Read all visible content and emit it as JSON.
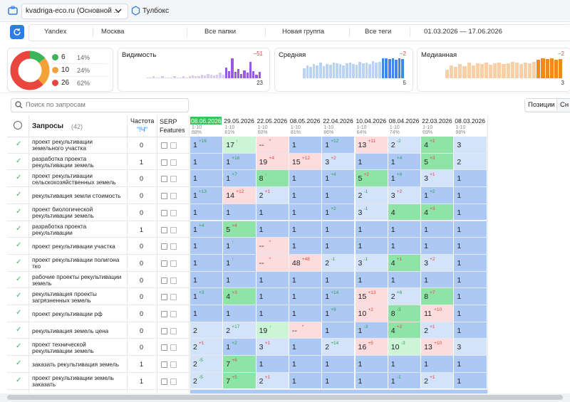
{
  "topbar": {
    "project": "kvadriga-eco.ru (Основной ...",
    "toolbox": "Тулбокс"
  },
  "filters": [
    "Yandex",
    "Москва",
    "Все папки",
    "Новая группа",
    "Все теги",
    "01.03.2026 — 17.06.2026"
  ],
  "summary": {
    "donut": [
      {
        "count": 6,
        "percent": 14,
        "percent_label": "14%",
        "color": "#3cb55a"
      },
      {
        "count": 10,
        "percent": 24,
        "percent_label": "24%",
        "color": "#f5a13a"
      },
      {
        "count": 26,
        "percent": 62,
        "percent_label": "62%",
        "color": "#e8463f"
      }
    ],
    "cards": [
      {
        "title": "Видимость",
        "delta": "−51",
        "value": 23,
        "color": "#d8ccef",
        "recent_color": "#9a5ae0",
        "bars": [
          1,
          1,
          2,
          1,
          1,
          2,
          1,
          1,
          1,
          2,
          1,
          1,
          2,
          1,
          2,
          3,
          2,
          2,
          4,
          3,
          5,
          4,
          3,
          4,
          6,
          4
        ],
        "recent_bars": [
          12,
          8,
          22,
          7,
          10,
          5,
          9,
          6,
          18,
          8,
          4,
          7
        ]
      },
      {
        "title": "Средняя",
        "delta": "−2",
        "value": 5,
        "color": "#b9d3f5",
        "recent_color": "#3f86e8",
        "bars": [
          14,
          18,
          16,
          20,
          18,
          22,
          17,
          20,
          19,
          22,
          21,
          20,
          18,
          21,
          22,
          20,
          19,
          23,
          21,
          22,
          20,
          24,
          22,
          23
        ],
        "recent_bars": [
          28,
          28,
          27,
          28,
          26,
          28,
          27
        ]
      },
      {
        "title": "Медианная",
        "delta": "−2",
        "value": 3,
        "color": "#f8cfa6",
        "recent_color": "#ef8a1f",
        "bars": [
          12,
          18,
          16,
          20,
          17,
          22,
          18,
          21,
          20,
          22,
          19,
          21,
          22,
          20,
          21,
          23,
          22,
          20,
          22,
          21,
          23
        ],
        "recent_bars": [
          26,
          28,
          27,
          28,
          26,
          27
        ]
      }
    ]
  },
  "search_placeholder": "Поиск по запросам",
  "tabs": [
    "Позиции",
    "Сн"
  ],
  "table": {
    "header": {
      "queries": "Запросы",
      "count": "(42)",
      "freq": "Частота",
      "freq_sub": "\"!Ч\"",
      "serp": "SERP Features"
    },
    "dates": [
      {
        "date": "08.06.2026",
        "range": "1-10",
        "top": "88%"
      },
      {
        "date": "29.05.2026",
        "range": "1-10",
        "top": "81%"
      },
      {
        "date": "22.05.2026",
        "range": "1-10",
        "top": "60%"
      },
      {
        "date": "08.05.2026",
        "range": "1-10",
        "top": "81%"
      },
      {
        "date": "22.04.2026",
        "range": "1-10",
        "top": "86%"
      },
      {
        "date": "10.04.2026",
        "range": "1-10",
        "top": "64%"
      },
      {
        "date": "08.04.2026",
        "range": "1-10",
        "top": "74%"
      },
      {
        "date": "22.03.2026",
        "range": "1-10",
        "top": "69%"
      },
      {
        "date": "08.03.2026",
        "range": "1-10",
        "top": "98%"
      }
    ],
    "palette": {
      "b": "#abc9f4",
      "lb": "#d3e3f9",
      "g": "#8ee3a6",
      "lg": "#ccf4d6",
      "p": "#fcdcdc"
    },
    "delta_colors": {
      "g": "#2e9e4f",
      "r": "#e04545"
    },
    "rows": [
      {
        "query": "проект рекультивации земельного участка",
        "freq": "0",
        "cells": [
          {
            "v": "1",
            "d": "+16",
            "dc": "g",
            "bg": "b"
          },
          {
            "v": "17",
            "d": "↑",
            "dc": "g",
            "bg": "lg"
          },
          {
            "v": "--",
            "d": "*",
            "dc": "r",
            "bg": "p"
          },
          {
            "v": "1",
            "bg": "b"
          },
          {
            "v": "1",
            "d": "+12",
            "dc": "g",
            "bg": "b"
          },
          {
            "v": "13",
            "d": "+11",
            "dc": "r",
            "bg": "p"
          },
          {
            "v": "2",
            "d": "-2",
            "dc": "g",
            "bg": "lb"
          },
          {
            "v": "4",
            "d": "+1",
            "dc": "r",
            "bg": "g"
          },
          {
            "v": "3",
            "bg": "lb"
          }
        ]
      },
      {
        "query": "разработка проекта рекультивации земель",
        "freq": "1",
        "cells": [
          {
            "v": "1",
            "bg": "b"
          },
          {
            "v": "1",
            "d": "+16",
            "dc": "g",
            "bg": "b"
          },
          {
            "v": "19",
            "d": "+4",
            "dc": "r",
            "bg": "p"
          },
          {
            "v": "15",
            "d": "+12",
            "dc": "r",
            "bg": "p"
          },
          {
            "v": "3",
            "d": "+2",
            "dc": "r",
            "bg": "lb"
          },
          {
            "v": "1",
            "bg": "b"
          },
          {
            "v": "1",
            "d": "+4",
            "dc": "g",
            "bg": "b"
          },
          {
            "v": "5",
            "d": "+3",
            "dc": "r",
            "bg": "g"
          },
          {
            "v": "2",
            "bg": "lb"
          }
        ]
      },
      {
        "query": "проект рекультивации сельскохозяйственных земель",
        "freq": "0",
        "cells": [
          {
            "v": "1",
            "bg": "b"
          },
          {
            "v": "1",
            "d": "+7",
            "dc": "g",
            "bg": "b"
          },
          {
            "v": "8",
            "d": "↑",
            "dc": "g",
            "bg": "g"
          },
          {
            "v": "1",
            "bg": "b"
          },
          {
            "v": "1",
            "d": "+4",
            "dc": "g",
            "bg": "b"
          },
          {
            "v": "5",
            "d": "+2",
            "dc": "r",
            "bg": "g"
          },
          {
            "v": "1",
            "d": "+6",
            "dc": "g",
            "bg": "b"
          },
          {
            "v": "3",
            "d": "+1",
            "dc": "r",
            "bg": "lb"
          },
          {
            "v": "1",
            "bg": "b"
          }
        ]
      },
      {
        "query": "рекультивация земли стоимость",
        "freq": "0",
        "cells": [
          {
            "v": "1",
            "d": "+13",
            "dc": "g",
            "bg": "b"
          },
          {
            "v": "14",
            "d": "+12",
            "dc": "r",
            "bg": "p"
          },
          {
            "v": "2",
            "d": "+1",
            "dc": "r",
            "bg": "lb"
          },
          {
            "v": "1",
            "bg": "b"
          },
          {
            "v": "1",
            "bg": "b"
          },
          {
            "v": "2",
            "d": "-1",
            "dc": "g",
            "bg": "lb"
          },
          {
            "v": "3",
            "d": "+2",
            "dc": "r",
            "bg": "lb"
          },
          {
            "v": "1",
            "d": "+2",
            "dc": "g",
            "bg": "b"
          },
          {
            "v": "1",
            "bg": "b"
          }
        ]
      },
      {
        "query": "проект биологической рекультивации земель",
        "freq": "0",
        "cells": [
          {
            "v": "1",
            "bg": "b"
          },
          {
            "v": "1",
            "bg": "b"
          },
          {
            "v": "1",
            "bg": "b"
          },
          {
            "v": "1",
            "bg": "b"
          },
          {
            "v": "1",
            "d": "+2",
            "dc": "g",
            "bg": "b"
          },
          {
            "v": "3",
            "d": "-1",
            "dc": "g",
            "bg": "lb"
          },
          {
            "v": "4",
            "bg": "g"
          },
          {
            "v": "4",
            "d": "+3",
            "dc": "r",
            "bg": "g"
          },
          {
            "v": "1",
            "bg": "b"
          }
        ]
      },
      {
        "query": "разработка проекта рекультивации",
        "freq": "1",
        "cells": [
          {
            "v": "1",
            "d": "+4",
            "dc": "g",
            "bg": "b"
          },
          {
            "v": "5",
            "d": "+4",
            "dc": "r",
            "bg": "g"
          },
          {
            "v": "1",
            "bg": "b"
          },
          {
            "v": "1",
            "bg": "b"
          },
          {
            "v": "1",
            "bg": "b"
          },
          {
            "v": "1",
            "bg": "b"
          },
          {
            "v": "1",
            "bg": "b"
          },
          {
            "v": "1",
            "bg": "b"
          },
          {
            "v": "1",
            "bg": "b"
          }
        ]
      },
      {
        "query": "проект рекультивации участка",
        "freq": "0",
        "cells": [
          {
            "v": "1",
            "bg": "b"
          },
          {
            "v": "1",
            "d": "↑",
            "dc": "g",
            "bg": "b"
          },
          {
            "v": "--",
            "d": "*",
            "dc": "r",
            "bg": "p"
          },
          {
            "v": "1",
            "bg": "b"
          },
          {
            "v": "1",
            "bg": "b"
          },
          {
            "v": "1",
            "bg": "b"
          },
          {
            "v": "1",
            "bg": "b"
          },
          {
            "v": "1",
            "bg": "b"
          },
          {
            "v": "1",
            "bg": "b"
          }
        ]
      },
      {
        "query": "проект рекультивации полигона тко",
        "freq": "0",
        "cells": [
          {
            "v": "1",
            "bg": "b"
          },
          {
            "v": "1",
            "d": "↑",
            "dc": "g",
            "bg": "b"
          },
          {
            "v": "--",
            "d": "*",
            "dc": "r",
            "bg": "p"
          },
          {
            "v": "48",
            "d": "+48",
            "dc": "r",
            "bg": "p"
          },
          {
            "v": "2",
            "d": "-1",
            "dc": "g",
            "bg": "lb"
          },
          {
            "v": "3",
            "d": "-1",
            "dc": "g",
            "bg": "lb"
          },
          {
            "v": "4",
            "d": "+1",
            "dc": "r",
            "bg": "g"
          },
          {
            "v": "3",
            "d": "+2",
            "dc": "r",
            "bg": "lb"
          },
          {
            "v": "1",
            "bg": "b"
          }
        ]
      },
      {
        "query": "рабочие проекты рекультивации земель",
        "freq": "0",
        "cells": [
          {
            "v": "1",
            "bg": "b"
          },
          {
            "v": "1",
            "bg": "b"
          },
          {
            "v": "1",
            "bg": "b"
          },
          {
            "v": "1",
            "bg": "b"
          },
          {
            "v": "1",
            "bg": "b"
          },
          {
            "v": "1",
            "bg": "b"
          },
          {
            "v": "1",
            "bg": "b"
          },
          {
            "v": "1",
            "bg": "b"
          },
          {
            "v": "1",
            "bg": "b"
          }
        ]
      },
      {
        "query": "рекультивация проекты загрязненных земель",
        "freq": "0",
        "cells": [
          {
            "v": "1",
            "d": "+3",
            "dc": "g",
            "bg": "b"
          },
          {
            "v": "4",
            "d": "+3",
            "dc": "r",
            "bg": "g"
          },
          {
            "v": "1",
            "bg": "b"
          },
          {
            "v": "1",
            "bg": "b"
          },
          {
            "v": "1",
            "d": "+14",
            "dc": "g",
            "bg": "b"
          },
          {
            "v": "15",
            "d": "+13",
            "dc": "r",
            "bg": "p"
          },
          {
            "v": "2",
            "d": "+6",
            "dc": "g",
            "bg": "lb"
          },
          {
            "v": "8",
            "d": "+7",
            "dc": "r",
            "bg": "g"
          },
          {
            "v": "1",
            "bg": "b"
          }
        ]
      },
      {
        "query": "проект рекультивации рф",
        "freq": "0",
        "cells": [
          {
            "v": "1",
            "bg": "b"
          },
          {
            "v": "1",
            "bg": "b"
          },
          {
            "v": "1",
            "bg": "b"
          },
          {
            "v": "1",
            "bg": "b"
          },
          {
            "v": "1",
            "d": "+9",
            "dc": "g",
            "bg": "b"
          },
          {
            "v": "10",
            "d": "+2",
            "dc": "r",
            "bg": "p"
          },
          {
            "v": "8",
            "d": "-3",
            "dc": "g",
            "bg": "g"
          },
          {
            "v": "11",
            "d": "+10",
            "dc": "r",
            "bg": "p"
          },
          {
            "v": "1",
            "bg": "b"
          }
        ]
      },
      {
        "query": "рекультивация земель цена",
        "freq": "0",
        "cells": [
          {
            "v": "2",
            "bg": "lb"
          },
          {
            "v": "2",
            "d": "+17",
            "dc": "g",
            "bg": "lb"
          },
          {
            "v": "19",
            "d": "↑",
            "dc": "g",
            "bg": "lg"
          },
          {
            "v": "--",
            "d": "*",
            "dc": "r",
            "bg": "p"
          },
          {
            "v": "1",
            "bg": "b"
          },
          {
            "v": "1",
            "d": "-3",
            "dc": "g",
            "bg": "b"
          },
          {
            "v": "4",
            "d": "+2",
            "dc": "r",
            "bg": "g"
          },
          {
            "v": "2",
            "d": "+1",
            "dc": "r",
            "bg": "lb"
          },
          {
            "v": "1",
            "bg": "b"
          }
        ]
      },
      {
        "query": "проект технической рекультивации земель",
        "freq": "0",
        "cells": [
          {
            "v": "2",
            "d": "+1",
            "dc": "r",
            "bg": "lb"
          },
          {
            "v": "1",
            "d": "+2",
            "dc": "g",
            "bg": "b"
          },
          {
            "v": "3",
            "d": "+1",
            "dc": "r",
            "bg": "lb"
          },
          {
            "v": "1",
            "bg": "b"
          },
          {
            "v": "2",
            "d": "+14",
            "dc": "g",
            "bg": "lb"
          },
          {
            "v": "16",
            "d": "+5",
            "dc": "r",
            "bg": "p"
          },
          {
            "v": "10",
            "d": "-3",
            "dc": "g",
            "bg": "lg"
          },
          {
            "v": "13",
            "d": "+10",
            "dc": "r",
            "bg": "p"
          },
          {
            "v": "3",
            "bg": "lb"
          }
        ]
      },
      {
        "query": "заказать рекультивация земель",
        "freq": "1",
        "cells": [
          {
            "v": "2",
            "d": "-5",
            "dc": "g",
            "bg": "lb"
          },
          {
            "v": "7",
            "d": "+6",
            "dc": "r",
            "bg": "g"
          },
          {
            "v": "1",
            "bg": "b"
          },
          {
            "v": "1",
            "bg": "b"
          },
          {
            "v": "1",
            "bg": "b"
          },
          {
            "v": "1",
            "bg": "b"
          },
          {
            "v": "1",
            "bg": "b"
          },
          {
            "v": "1",
            "bg": "b"
          },
          {
            "v": "1",
            "bg": "b"
          }
        ]
      },
      {
        "query": "проект рекультивации земель заказать",
        "freq": "1",
        "cells": [
          {
            "v": "2",
            "d": "-5",
            "dc": "g",
            "bg": "lb"
          },
          {
            "v": "7",
            "d": "+5",
            "dc": "r",
            "bg": "g"
          },
          {
            "v": "2",
            "d": "+1",
            "dc": "r",
            "bg": "lb"
          },
          {
            "v": "1",
            "bg": "b"
          },
          {
            "v": "1",
            "bg": "b"
          },
          {
            "v": "1",
            "bg": "b"
          },
          {
            "v": "1",
            "d": "-1",
            "dc": "g",
            "bg": "b"
          },
          {
            "v": "2",
            "d": "+1",
            "dc": "r",
            "bg": "lb"
          },
          {
            "v": "1",
            "bg": "b"
          }
        ]
      }
    ]
  }
}
